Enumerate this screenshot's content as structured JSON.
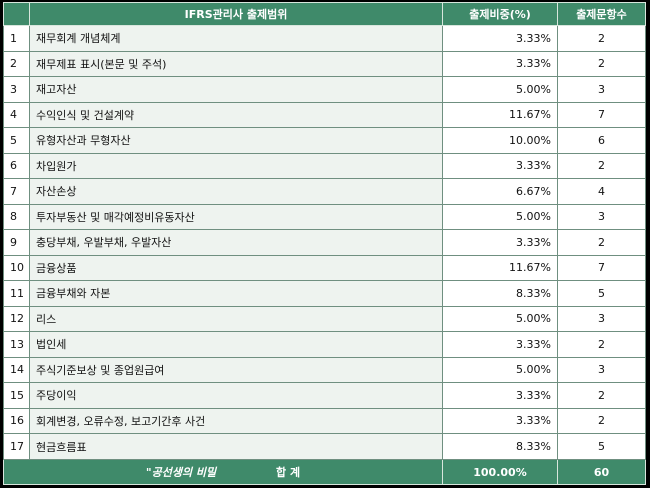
{
  "header": {
    "scope": "IFRS관리사 출제범위",
    "ratio": "출제비중(%)",
    "count": "출제문항수"
  },
  "rows": [
    {
      "no": "1",
      "topic": "재무회계 개념체계",
      "ratio": "3.33%",
      "count": "2"
    },
    {
      "no": "2",
      "topic": "재무제표 표시(본문 및 주석)",
      "ratio": "3.33%",
      "count": "2"
    },
    {
      "no": "3",
      "topic": "재고자산",
      "ratio": "5.00%",
      "count": "3"
    },
    {
      "no": "4",
      "topic": "수익인식 및 건설계약",
      "ratio": "11.67%",
      "count": "7"
    },
    {
      "no": "5",
      "topic": "유형자산과 무형자산",
      "ratio": "10.00%",
      "count": "6"
    },
    {
      "no": "6",
      "topic": "차입원가",
      "ratio": "3.33%",
      "count": "2"
    },
    {
      "no": "7",
      "topic": "자산손상",
      "ratio": "6.67%",
      "count": "4"
    },
    {
      "no": "8",
      "topic": "투자부동산 및 매각예정비유동자산",
      "ratio": "5.00%",
      "count": "3"
    },
    {
      "no": "9",
      "topic": "충당부채, 우발부채, 우발자산",
      "ratio": "3.33%",
      "count": "2"
    },
    {
      "no": "10",
      "topic": "금융상품",
      "ratio": "11.67%",
      "count": "7"
    },
    {
      "no": "11",
      "topic": "금융부채와 자본",
      "ratio": "8.33%",
      "count": "5"
    },
    {
      "no": "12",
      "topic": "리스",
      "ratio": "5.00%",
      "count": "3"
    },
    {
      "no": "13",
      "topic": "법인세",
      "ratio": "3.33%",
      "count": "2"
    },
    {
      "no": "14",
      "topic": "주식기준보상 및 종업원급여",
      "ratio": "5.00%",
      "count": "3"
    },
    {
      "no": "15",
      "topic": "주당이익",
      "ratio": "3.33%",
      "count": "2"
    },
    {
      "no": "16",
      "topic": "회계변경, 오류수정, 보고기간후 사건",
      "ratio": "3.33%",
      "count": "2"
    },
    {
      "no": "17",
      "topic": "현금흐름표",
      "ratio": "8.33%",
      "count": "5"
    }
  ],
  "total": {
    "signature": "\"공선생의 비밀",
    "label": "합 계",
    "ratio": "100.00%",
    "count": "60"
  },
  "colors": {
    "header_bg": "#3f8a6a",
    "topic_bg": "#eef3ef",
    "page_bg": "#000000"
  }
}
